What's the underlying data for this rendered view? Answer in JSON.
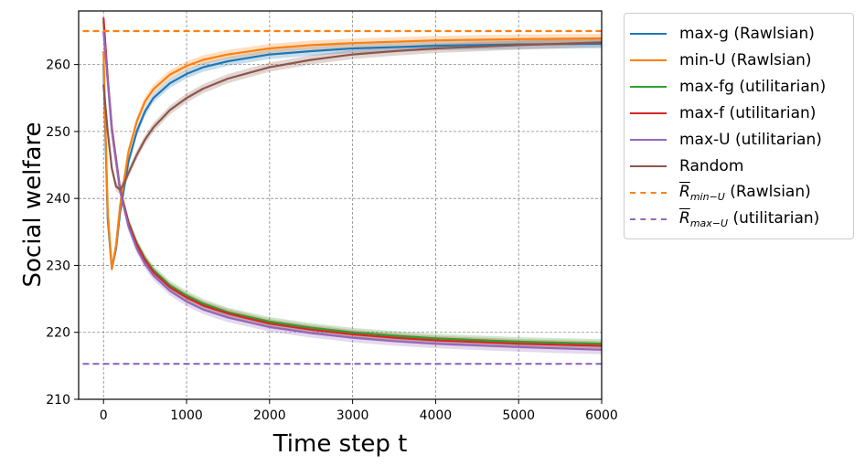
{
  "chart_data": {
    "type": "line",
    "title": "",
    "xlabel": "Time step t",
    "ylabel": "Social welfare",
    "xlim": [
      -300,
      6000
    ],
    "ylim": [
      210,
      268
    ],
    "xticks": [
      0,
      1000,
      2000,
      3000,
      4000,
      5000,
      6000
    ],
    "yticks": [
      210,
      220,
      230,
      240,
      250,
      260
    ],
    "grid": true,
    "legend_position": "outside-right",
    "series": [
      {
        "name": "max-g (Rawlsian)",
        "color": "#1f77b4",
        "dash": "solid",
        "x": [
          0,
          50,
          100,
          150,
          200,
          300,
          400,
          500,
          600,
          800,
          1000,
          1200,
          1500,
          2000,
          2500,
          3000,
          3500,
          4000,
          5000,
          6000
        ],
        "y": [
          260.0,
          237.0,
          229.5,
          232.5,
          238.0,
          245.5,
          250.0,
          253.0,
          255.0,
          257.2,
          258.6,
          259.6,
          260.5,
          261.5,
          262.0,
          262.4,
          262.6,
          262.8,
          263.0,
          263.1
        ]
      },
      {
        "name": "min-U (Rawlsian)",
        "color": "#ff7f0e",
        "dash": "solid",
        "x": [
          0,
          50,
          100,
          150,
          200,
          300,
          400,
          500,
          600,
          800,
          1000,
          1200,
          1500,
          2000,
          2500,
          3000,
          3500,
          4000,
          5000,
          6000
        ],
        "y": [
          262.0,
          238.0,
          229.5,
          233.0,
          239.0,
          247.0,
          251.5,
          254.5,
          256.3,
          258.5,
          259.8,
          260.7,
          261.5,
          262.4,
          262.9,
          263.2,
          263.4,
          263.6,
          263.8,
          263.9
        ]
      },
      {
        "name": "max-fg (utilitarian)",
        "color": "#2ca02c",
        "dash": "solid",
        "x": [
          0,
          50,
          100,
          200,
          300,
          400,
          500,
          600,
          800,
          1000,
          1200,
          1500,
          2000,
          2500,
          3000,
          3500,
          4000,
          5000,
          6000
        ],
        "y": [
          266.5,
          258.0,
          250.5,
          241.3,
          236.5,
          233.3,
          231.0,
          229.3,
          227.0,
          225.5,
          224.3,
          223.0,
          221.6,
          220.7,
          220.0,
          219.5,
          219.1,
          218.6,
          218.3
        ]
      },
      {
        "name": "max-f (utilitarian)",
        "color": "#d62728",
        "dash": "solid",
        "x": [
          0,
          50,
          100,
          200,
          300,
          400,
          500,
          600,
          800,
          1000,
          1200,
          1500,
          2000,
          2500,
          3000,
          3500,
          4000,
          5000,
          6000
        ],
        "y": [
          267.0,
          258.0,
          250.5,
          241.3,
          236.3,
          233.1,
          230.8,
          229.0,
          226.7,
          225.2,
          224.0,
          222.8,
          221.3,
          220.4,
          219.7,
          219.2,
          218.8,
          218.3,
          218.0
        ]
      },
      {
        "name": "max-U (utilitarian)",
        "color": "#9467bd",
        "dash": "solid",
        "x": [
          0,
          50,
          100,
          200,
          300,
          400,
          500,
          600,
          800,
          1000,
          1200,
          1500,
          2000,
          2500,
          3000,
          3500,
          4000,
          5000,
          6000
        ],
        "y": [
          265.0,
          257.5,
          250.0,
          241.0,
          235.8,
          232.5,
          230.2,
          228.5,
          226.2,
          224.6,
          223.4,
          222.2,
          220.8,
          219.9,
          219.2,
          218.7,
          218.3,
          217.8,
          217.4
        ]
      },
      {
        "name": "Random",
        "color": "#8c564b",
        "dash": "solid",
        "x": [
          0,
          50,
          100,
          150,
          200,
          250,
          300,
          400,
          500,
          600,
          800,
          1000,
          1200,
          1500,
          2000,
          2500,
          3000,
          3500,
          4000,
          5000,
          6000
        ],
        "y": [
          257.0,
          250.0,
          244.5,
          241.8,
          241.3,
          242.3,
          243.8,
          246.5,
          248.8,
          250.6,
          253.2,
          255.0,
          256.4,
          257.9,
          259.6,
          260.7,
          261.5,
          262.0,
          262.4,
          262.9,
          263.3
        ]
      },
      {
        "name": "R̄_{min-U} (Rawlsian)",
        "color": "#ff7f0e",
        "dash": "dashed",
        "x": [
          -250,
          6000
        ],
        "y": [
          265.0,
          265.0
        ]
      },
      {
        "name": "R̄_{max-U} (utilitarian)",
        "color": "#9467bd",
        "dash": "dashed",
        "x": [
          -250,
          6000
        ],
        "y": [
          215.3,
          215.3
        ]
      }
    ]
  },
  "legend": {
    "items": [
      {
        "label": "max-g (Rawlsian)",
        "color": "#1f77b4",
        "dash": "solid"
      },
      {
        "label": "min-U (Rawlsian)",
        "color": "#ff7f0e",
        "dash": "solid"
      },
      {
        "label": "max-fg (utilitarian)",
        "color": "#2ca02c",
        "dash": "solid"
      },
      {
        "label": "max-f (utilitarian)",
        "color": "#d62728",
        "dash": "solid"
      },
      {
        "label": "max-U (utilitarian)",
        "color": "#9467bd",
        "dash": "solid"
      },
      {
        "label": "Random",
        "color": "#8c564b",
        "dash": "solid"
      },
      {
        "label_main": "R",
        "label_sub": "min−U",
        "label_rest": " (Rawlsian)",
        "color": "#ff7f0e",
        "dash": "dashed"
      },
      {
        "label_main": "R",
        "label_sub": "max−U",
        "label_rest": " (utilitarian)",
        "color": "#9467bd",
        "dash": "dashed"
      }
    ]
  }
}
